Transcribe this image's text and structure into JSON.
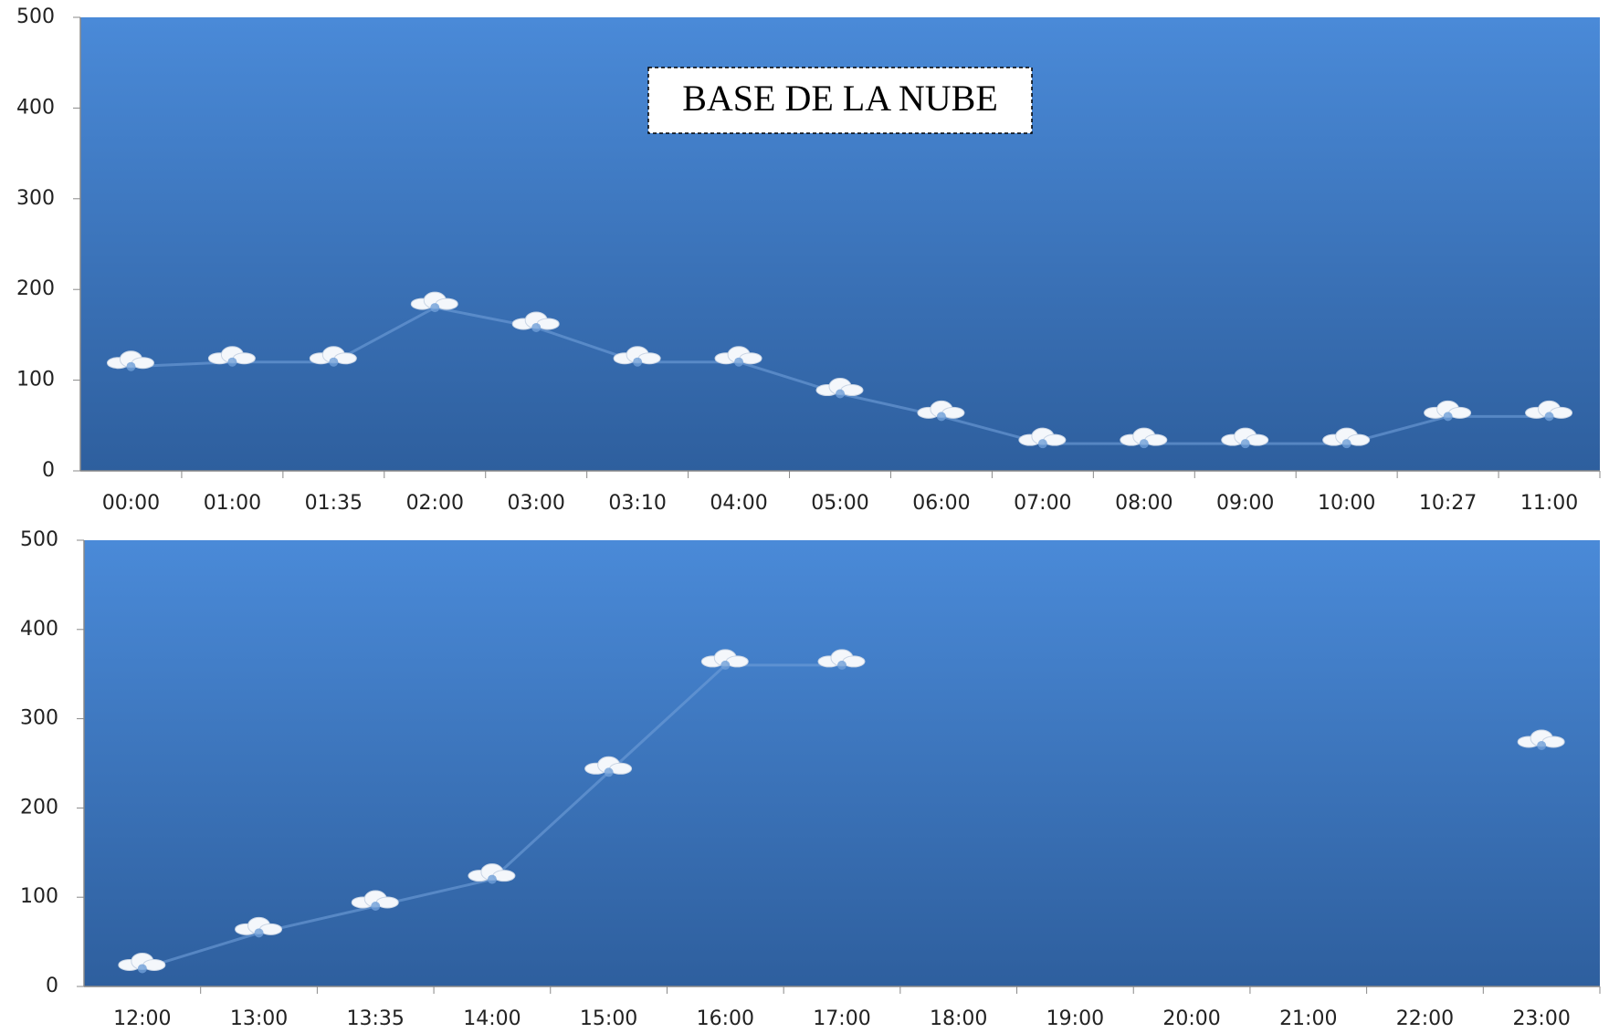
{
  "chart_data": [
    {
      "type": "line",
      "title": "BASE DE LA NUBE",
      "categories": [
        "00:00",
        "01:00",
        "01:35",
        "02:00",
        "03:00",
        "03:10",
        "04:00",
        "05:00",
        "06:00",
        "07:00",
        "08:00",
        "09:00",
        "10:00",
        "10:27",
        "11:00"
      ],
      "values": [
        115,
        120,
        120,
        180,
        158,
        120,
        120,
        85,
        60,
        30,
        30,
        30,
        30,
        60,
        60
      ],
      "color": "#6f9fd8",
      "ylim": [
        0,
        500
      ],
      "yticks": [
        0,
        100,
        200,
        300,
        400,
        500
      ]
    },
    {
      "type": "line",
      "categories": [
        "12:00",
        "13:00",
        "13:35",
        "14:00",
        "15:00",
        "16:00",
        "17:00",
        "18:00",
        "19:00",
        "20:00",
        "21:00",
        "22:00",
        "23:00"
      ],
      "values": [
        20,
        60,
        90,
        120,
        240,
        360,
        360,
        null,
        null,
        null,
        null,
        null,
        270
      ],
      "color": "#6f9fd8",
      "ylim": [
        0,
        500
      ],
      "yticks": [
        0,
        100,
        200,
        300,
        400,
        500
      ]
    }
  ]
}
